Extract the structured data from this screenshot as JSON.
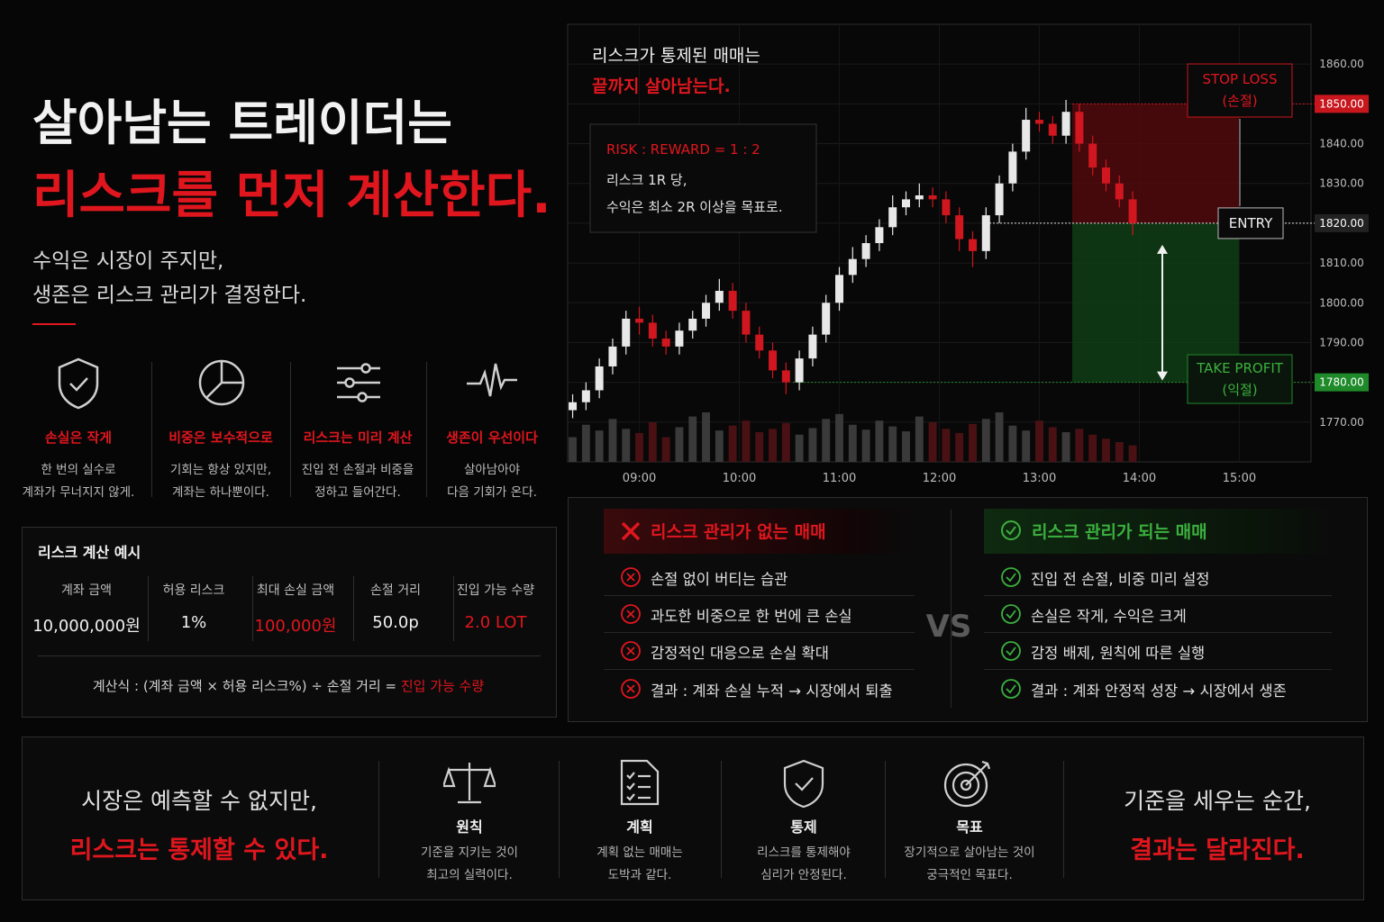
{
  "header": {
    "title_line1": "살아남는 트레이더는",
    "title_line2": "리스크를 먼저 계산한다.",
    "subtitle_line1": "수익은 시장이 주지만,",
    "subtitle_line2": "생존은 리스크 관리가 결정한다."
  },
  "principles": [
    {
      "title": "손실은 작게",
      "desc_line1": "한 번의 실수로",
      "desc_line2": "계좌가 무너지지 않게."
    },
    {
      "title": "비중은 보수적으로",
      "desc_line1": "기회는 항상 있지만,",
      "desc_line2": "계좌는 하나뿐이다."
    },
    {
      "title": "리스크는 미리 계산",
      "desc_line1": "진입 전 손절과 비중을",
      "desc_line2": "정하고 들어간다."
    },
    {
      "title": "생존이 우선이다",
      "desc_line1": "살아남아야",
      "desc_line2": "다음 기회가 온다."
    }
  ],
  "risk_example": {
    "title": "리스크 계산 예시",
    "columns": [
      {
        "label": "계좌 금액",
        "value": "10,000,000원"
      },
      {
        "label": "허용 리스크",
        "value": "1%"
      },
      {
        "label": "최대 손실 금액",
        "value": "100,000원"
      },
      {
        "label": "손절 거리",
        "value": "50.0p"
      },
      {
        "label": "진입 가능 수량",
        "value": "2.0 LOT"
      }
    ],
    "formula_prefix": "계산식 : (계좌 금액 × 허용 리스크%) ÷ 손절 거리 =",
    "formula_highlight": "진입 가능 수량"
  },
  "chart_data": {
    "type": "candlestick",
    "caption_line1": "리스크가 통제된 매매는",
    "caption_line2": "끝까지 살아남는다.",
    "rr_title": "RISK : REWARD = 1 : 2",
    "rr_line1": "리스크 1R 당,",
    "rr_line2": "수익은 최소 2R 이상을 목표로.",
    "x": [
      500,
      508,
      516,
      524,
      532,
      540,
      548,
      556,
      564,
      572,
      580,
      588,
      596,
      604,
      612,
      620,
      628,
      636,
      644,
      652,
      660,
      668,
      676,
      684,
      692,
      700,
      708,
      716,
      724,
      732,
      740,
      748,
      756,
      764,
      772,
      780,
      788,
      796,
      804,
      812,
      820,
      828,
      836
    ],
    "open": [
      1773,
      1775,
      1778,
      1784,
      1789,
      1796,
      1795,
      1791,
      1789,
      1793,
      1796,
      1800,
      1803,
      1798,
      1792,
      1788,
      1783,
      1780,
      1786,
      1792,
      1800,
      1807,
      1811,
      1815,
      1819,
      1824,
      1826,
      1827,
      1826,
      1822,
      1816,
      1813,
      1822,
      1830,
      1838,
      1846,
      1845,
      1842,
      1848,
      1840,
      1834,
      1830,
      1826
    ],
    "high": [
      1777,
      1780,
      1786,
      1791,
      1798,
      1799,
      1797,
      1793,
      1795,
      1798,
      1802,
      1806,
      1805,
      1800,
      1794,
      1790,
      1785,
      1788,
      1794,
      1802,
      1809,
      1814,
      1817,
      1821,
      1827,
      1828,
      1830,
      1829,
      1828,
      1824,
      1818,
      1824,
      1832,
      1840,
      1849,
      1848,
      1847,
      1851,
      1850,
      1842,
      1836,
      1832,
      1828
    ],
    "low": [
      1771,
      1773,
      1776,
      1782,
      1787,
      1792,
      1789,
      1787,
      1787,
      1791,
      1794,
      1798,
      1796,
      1790,
      1786,
      1781,
      1777,
      1778,
      1784,
      1790,
      1798,
      1805,
      1809,
      1813,
      1817,
      1822,
      1824,
      1824,
      1820,
      1813,
      1809,
      1811,
      1820,
      1828,
      1836,
      1843,
      1840,
      1840,
      1838,
      1832,
      1828,
      1824,
      1817
    ],
    "close": [
      1775,
      1778,
      1784,
      1789,
      1796,
      1795,
      1791,
      1789,
      1793,
      1796,
      1800,
      1803,
      1798,
      1792,
      1788,
      1783,
      1780,
      1786,
      1792,
      1800,
      1807,
      1811,
      1815,
      1819,
      1824,
      1826,
      1827,
      1826,
      1822,
      1816,
      1813,
      1822,
      1830,
      1838,
      1846,
      1845,
      1842,
      1848,
      1840,
      1834,
      1830,
      1826,
      1820
    ],
    "volume": [
      30,
      45,
      38,
      52,
      40,
      35,
      48,
      30,
      42,
      55,
      60,
      38,
      44,
      50,
      36,
      40,
      47,
      33,
      41,
      52,
      58,
      45,
      39,
      50,
      43,
      37,
      55,
      48,
      40,
      35,
      46,
      52,
      60,
      44,
      38,
      50,
      42,
      36,
      40,
      33,
      28,
      24,
      20
    ],
    "up_color": "#e8e8e8",
    "down_color": "#d0161e",
    "xlim": [
      497,
      943
    ],
    "ylim": [
      1760,
      1870
    ],
    "xticks": [
      {
        "value": 540,
        "label": "09:00"
      },
      {
        "value": 600,
        "label": "10:00"
      },
      {
        "value": 660,
        "label": "11:00"
      },
      {
        "value": 720,
        "label": "12:00"
      },
      {
        "value": 780,
        "label": "13:00"
      },
      {
        "value": 840,
        "label": "14:00"
      },
      {
        "value": 900,
        "label": "15:00"
      }
    ],
    "yticks": [
      {
        "value": 1860,
        "label": "1860.00"
      },
      {
        "value": 1850,
        "label": "1850.00"
      },
      {
        "value": 1840,
        "label": "1840.00"
      },
      {
        "value": 1830,
        "label": "1830.00"
      },
      {
        "value": 1820,
        "label": "1820.00"
      },
      {
        "value": 1810,
        "label": "1810.00"
      },
      {
        "value": 1800,
        "label": "1800.00"
      },
      {
        "value": 1790,
        "label": "1790.00"
      },
      {
        "value": 1780,
        "label": "1780.00"
      },
      {
        "value": 1770,
        "label": "1770.00"
      }
    ],
    "grid": true,
    "levels": [
      {
        "name": "STOP LOSS",
        "sub": "(손절)",
        "value": 1850,
        "color": "#c8161d"
      },
      {
        "name": "ENTRY",
        "value": 1820,
        "color": "#e0e0e0"
      },
      {
        "name": "TAKE PROFIT",
        "sub": "(익절)",
        "value": 1780,
        "color": "#1f8a2a"
      }
    ]
  },
  "comparison": {
    "bad": {
      "title": "리스크 관리가 없는 매매",
      "items": [
        "손절 없이 버티는 습관",
        "과도한 비중으로 한 번에 큰 손실",
        "감정적인 대응으로 손실 확대",
        "결과 : 계좌 손실 누적 → 시장에서 퇴출"
      ]
    },
    "vs": "VS",
    "good": {
      "title": "리스크 관리가 되는 매매",
      "items": [
        "진입 전 손절, 비중 미리 설정",
        "손실은 작게, 수익은 크게",
        "감정 배제, 원칙에 따른 실행",
        "결과 : 계좌 안정적 성장 → 시장에서 생존"
      ]
    }
  },
  "footer": {
    "left_line1": "시장은 예측할 수 없지만,",
    "left_line2": "리스크는 통제할 수 있다.",
    "items": [
      {
        "title": "원칙",
        "line1": "기준을 지키는 것이",
        "line2": "최고의 실력이다."
      },
      {
        "title": "계획",
        "line1": "계획 없는 매매는",
        "line2": "도박과 같다."
      },
      {
        "title": "통제",
        "line1": "리스크를 통제해야",
        "line2": "심리가 안정된다."
      },
      {
        "title": "목표",
        "line1": "장기적으로 살아남는 것이",
        "line2": "궁극적인 목표다."
      }
    ],
    "right_line1": "기준을 세우는 순간,",
    "right_line2": "결과는 달라진다."
  }
}
